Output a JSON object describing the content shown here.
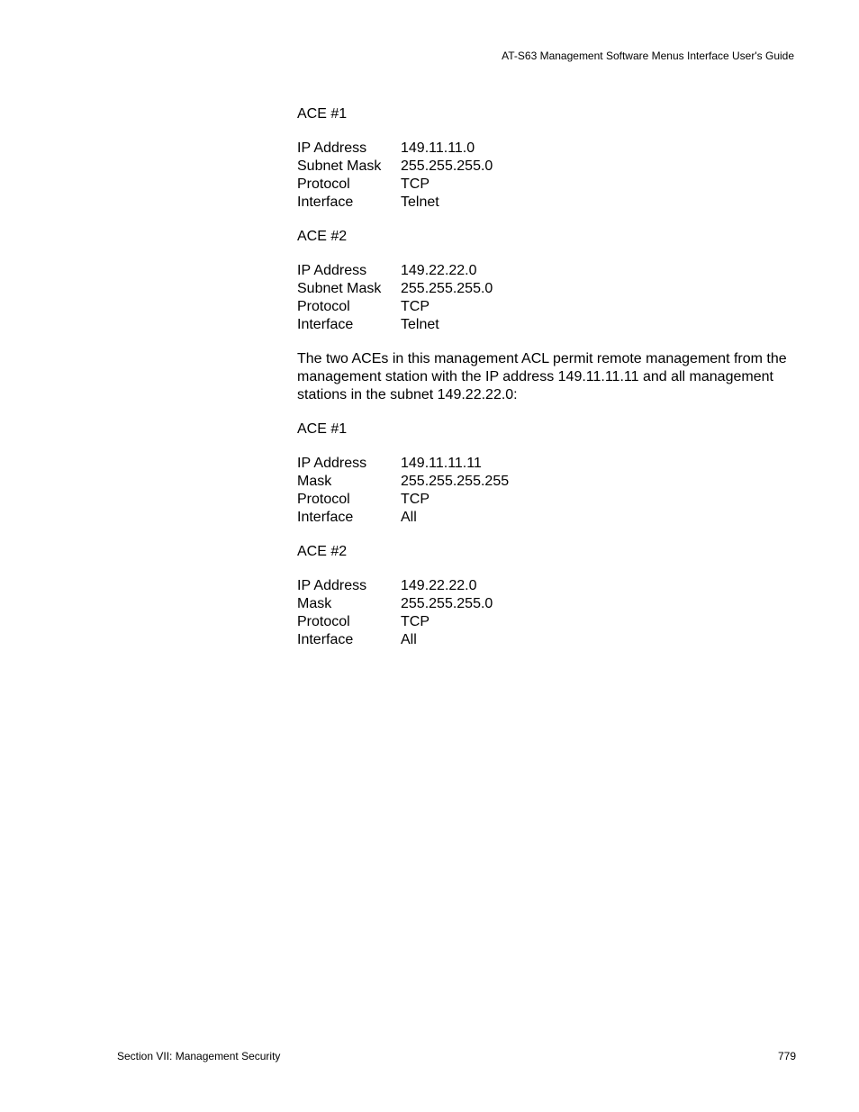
{
  "header": {
    "guide_title": "AT-S63 Management Software Menus Interface User's Guide"
  },
  "sections": [
    {
      "title": "ACE #1",
      "rows": [
        {
          "label": "IP Address",
          "value": "149.11.11.0"
        },
        {
          "label": "Subnet Mask",
          "value": "255.255.255.0"
        },
        {
          "label": "Protocol",
          "value": "TCP"
        },
        {
          "label": "Interface",
          "value": "Telnet"
        }
      ]
    },
    {
      "title": "ACE #2",
      "rows": [
        {
          "label": "IP Address",
          "value": "149.22.22.0"
        },
        {
          "label": "Subnet Mask",
          "value": "255.255.255.0"
        },
        {
          "label": "Protocol",
          "value": "TCP"
        },
        {
          "label": "Interface",
          "value": "Telnet"
        }
      ]
    }
  ],
  "paragraph": "The two ACEs in this management ACL permit remote management from the management station with the IP address 149.11.11.11 and all management stations in the subnet 149.22.22.0:",
  "sections2": [
    {
      "title": "ACE #1",
      "rows": [
        {
          "label": "IP Address",
          "value": "149.11.11.11"
        },
        {
          "label": "Mask",
          "value": "255.255.255.255"
        },
        {
          "label": "Protocol",
          "value": "TCP"
        },
        {
          "label": "Interface",
          "value": "All"
        }
      ]
    },
    {
      "title": "ACE #2",
      "rows": [
        {
          "label": "IP Address",
          "value": "149.22.22.0"
        },
        {
          "label": "Mask",
          "value": "255.255.255.0"
        },
        {
          "label": "Protocol",
          "value": "TCP"
        },
        {
          "label": "Interface",
          "value": "All"
        }
      ]
    }
  ],
  "footer": {
    "section_label": "Section VII: Management Security",
    "page_number": "779"
  }
}
